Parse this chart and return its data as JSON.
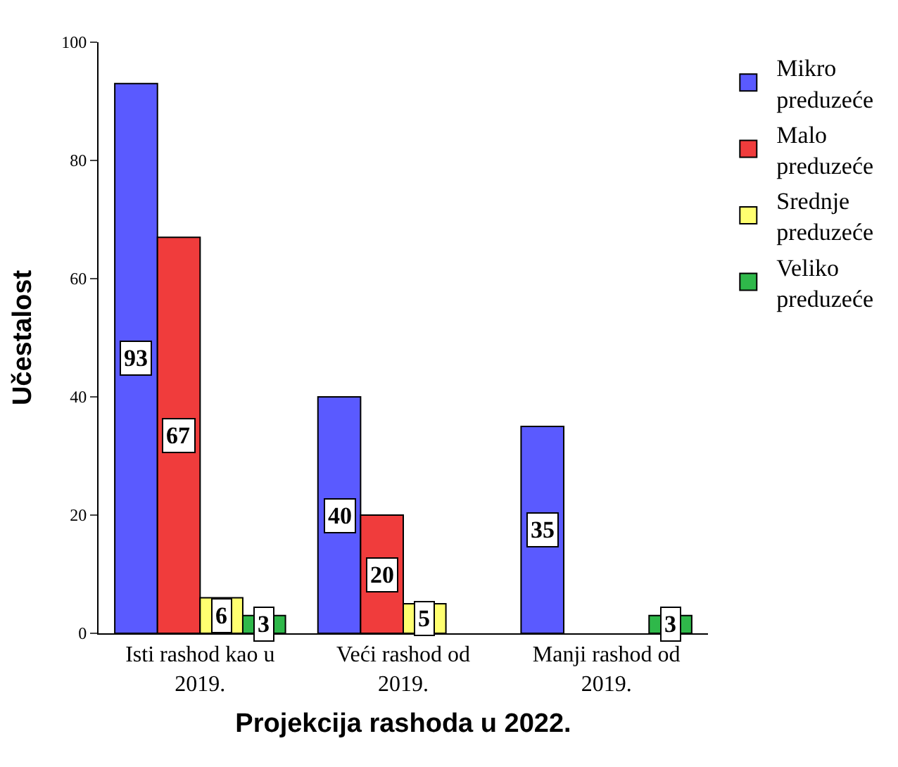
{
  "chart_data": {
    "type": "bar",
    "categories": [
      "Isti rashod kao u 2019.",
      "Veći rashod od 2019.",
      "Manji rashod od 2019."
    ],
    "series": [
      {
        "name": "Mikro preduzeće",
        "color": "#5a5aff",
        "values": [
          93,
          40,
          35
        ]
      },
      {
        "name": "Malo preduzeće",
        "color": "#f03c3c",
        "values": [
          67,
          20,
          null
        ]
      },
      {
        "name": "Srednje preduzeće",
        "color": "#ffff70",
        "values": [
          6,
          5,
          null
        ]
      },
      {
        "name": "Veliko preduzeće",
        "color": "#2fb84a",
        "values": [
          3,
          null,
          3
        ]
      }
    ],
    "xlabel": "Projekcija rashoda u 2022.",
    "ylabel": "Učestalost",
    "ylim": [
      0,
      100
    ],
    "yticks": [
      0,
      20,
      40,
      60,
      80,
      100
    ],
    "grid": false,
    "legend": "top right",
    "data_labels": true
  }
}
